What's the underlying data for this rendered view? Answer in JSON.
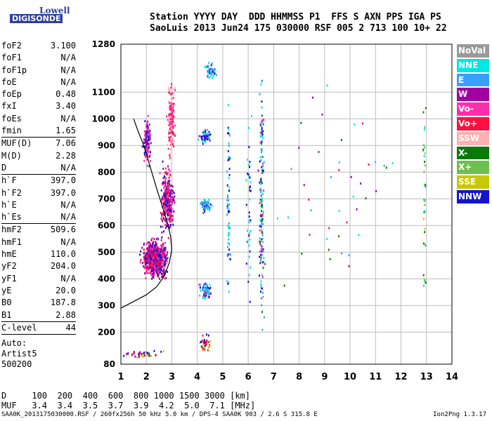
{
  "logo": {
    "line1": "Lowell",
    "line2": "DIGISONDE"
  },
  "header": {
    "line1": "Station YYYY DAY  DDD HHMMSS P1  FFS S AXN PPS IGA PS",
    "line2": "SaoLuis 2013 Jun24 175 030000 RSF 005 2 713 100 10+ 22"
  },
  "params": [
    {
      "label": "foF2",
      "value": "3.100"
    },
    {
      "label": "foF1",
      "value": "N/A"
    },
    {
      "label": "foF1p",
      "value": "N/A"
    },
    {
      "label": "foE",
      "value": "N/A"
    },
    {
      "label": "foEp",
      "value": "0.48"
    },
    {
      "label": "fxI",
      "value": "3.40"
    },
    {
      "label": "foEs",
      "value": "N/A"
    },
    {
      "label": "fmin",
      "value": "1.65"
    },
    {
      "label": "MUF(D)",
      "value": "7.06"
    },
    {
      "label": "M(D)",
      "value": "2.28"
    },
    {
      "label": "D",
      "value": "N/A"
    },
    {
      "label": "h`F",
      "value": "397.0"
    },
    {
      "label": "h`F2",
      "value": "397.0"
    },
    {
      "label": "h`E",
      "value": "N/A"
    },
    {
      "label": "h`Es",
      "value": "N/A"
    },
    {
      "label": "hmF2",
      "value": "509.6"
    },
    {
      "label": "hmF1",
      "value": "N/A"
    },
    {
      "label": "hmE",
      "value": "110.0"
    },
    {
      "label": "yF2",
      "value": "204.0"
    },
    {
      "label": "yF1",
      "value": "N/A"
    },
    {
      "label": "yE",
      "value": "20.0"
    },
    {
      "label": "B0",
      "value": "187.8"
    },
    {
      "label": "B1",
      "value": "2.88"
    },
    {
      "label": "C-level",
      "value": "44"
    }
  ],
  "auto": {
    "line1": "Auto:",
    "line2": "Artist5",
    "line3": "500200"
  },
  "scales": {
    "line1": "D     100  200  400  600  800 1000 1500 3000 [km]",
    "line2": "MUF   3.4  3.4  3.5  3.7  3.9  4.2  5.0  7.1 [MHz]"
  },
  "footer": "SAA0K_2013175030000.RSF / 260fx256h 50 kHz 5.0 km / DPS-4 SAA0K 903 / 2.6 S 315.8 E",
  "version": "Ion2Png 1.3.17",
  "legend": [
    {
      "label": "NoVal",
      "color": "#9a9a9a"
    },
    {
      "label": "NNE",
      "color": "#00e5e5"
    },
    {
      "label": "E",
      "color": "#3aa0ff"
    },
    {
      "label": "W",
      "color": "#a000a0"
    },
    {
      "label": "Vo-",
      "color": "#ff2faa"
    },
    {
      "label": "Vo+",
      "color": "#ff1040"
    },
    {
      "label": "SSW",
      "color": "#ffb0b0"
    },
    {
      "label": "X-",
      "color": "#0a7a0a"
    },
    {
      "label": "X+",
      "color": "#6fbf4f"
    },
    {
      "label": "SSE",
      "color": "#c8c800"
    },
    {
      "label": "NNW",
      "color": "#1414d0"
    }
  ],
  "chart_data": {
    "type": "scatter",
    "xlim": [
      1,
      14
    ],
    "ylim": [
      80,
      1280
    ],
    "x_ticks": [
      1,
      2,
      3,
      4,
      5,
      6,
      7,
      8,
      9,
      10,
      11,
      12,
      13,
      14
    ],
    "y_ticks": [
      80,
      200,
      300,
      400,
      500,
      600,
      700,
      800,
      900,
      1000,
      1100,
      1280
    ],
    "profile_curve": [
      [
        1.0,
        290
      ],
      [
        1.5,
        315
      ],
      [
        2.0,
        340
      ],
      [
        2.4,
        370
      ],
      [
        2.7,
        410
      ],
      [
        2.9,
        460
      ],
      [
        3.0,
        510
      ],
      [
        2.95,
        560
      ],
      [
        2.8,
        620
      ],
      [
        2.6,
        680
      ],
      [
        2.4,
        740
      ],
      [
        2.15,
        820
      ],
      [
        1.9,
        900
      ],
      [
        1.65,
        960
      ],
      [
        1.5,
        1000
      ]
    ],
    "clusters": [
      {
        "xc": 2.3,
        "yc": 480,
        "dx": 0.65,
        "dy": 90,
        "n": 700,
        "colors": [
          "#ff1040",
          "#ff2faa",
          "#a000a0",
          "#1414d0"
        ]
      },
      {
        "xc": 2.8,
        "yc": 700,
        "dx": 0.35,
        "dy": 160,
        "n": 300,
        "colors": [
          "#ff2faa",
          "#a000a0",
          "#ff1040",
          "#1414d0"
        ]
      },
      {
        "xc": 2.95,
        "yc": 1000,
        "dx": 0.2,
        "dy": 180,
        "n": 160,
        "colors": [
          "#ffb0b0",
          "#ff2faa",
          "#ff1040"
        ]
      },
      {
        "xc": 2.0,
        "yc": 920,
        "dx": 0.2,
        "dy": 130,
        "n": 120,
        "colors": [
          "#a000a0",
          "#ff2faa",
          "#1414d0"
        ]
      },
      {
        "xc": 4.3,
        "yc": 360,
        "dx": 0.3,
        "dy": 40,
        "n": 70,
        "colors": [
          "#1414d0",
          "#00e5e5",
          "#3aa0ff",
          "#ff2faa"
        ]
      },
      {
        "xc": 4.3,
        "yc": 680,
        "dx": 0.3,
        "dy": 40,
        "n": 60,
        "colors": [
          "#1414d0",
          "#00e5e5",
          "#3aa0ff"
        ]
      },
      {
        "xc": 4.3,
        "yc": 940,
        "dx": 0.3,
        "dy": 40,
        "n": 50,
        "colors": [
          "#1414d0",
          "#00e5e5",
          "#a000a0"
        ]
      },
      {
        "xc": 4.5,
        "yc": 1180,
        "dx": 0.3,
        "dy": 40,
        "n": 45,
        "colors": [
          "#1414d0",
          "#00e5e5",
          "#3aa0ff"
        ]
      },
      {
        "xc": 4.3,
        "yc": 160,
        "dx": 0.3,
        "dy": 40,
        "n": 40,
        "colors": [
          "#1414d0",
          "#ff1040",
          "#c8c800"
        ]
      },
      {
        "xc": 5.2,
        "yc": 700,
        "dx": 0.1,
        "dy": 560,
        "n": 60,
        "colors": [
          "#1414d0",
          "#00e5e5",
          "#3aa0ff"
        ]
      },
      {
        "xc": 6.5,
        "yc": 700,
        "dx": 0.12,
        "dy": 580,
        "n": 160,
        "colors": [
          "#1414d0",
          "#00e5e5",
          "#3aa0ff",
          "#0a7a0a",
          "#ff2faa"
        ]
      },
      {
        "xc": 6.0,
        "yc": 700,
        "dx": 0.15,
        "dy": 560,
        "n": 40,
        "colors": [
          "#1414d0",
          "#00e5e5"
        ]
      },
      {
        "xc": 12.9,
        "yc": 700,
        "dx": 0.1,
        "dy": 560,
        "n": 35,
        "colors": [
          "#c8c800",
          "#6fbf4f",
          "#0a7a0a",
          "#00e5e5"
        ]
      },
      {
        "xc": 1.8,
        "yc": 120,
        "dx": 1.2,
        "dy": 15,
        "n": 45,
        "colors": [
          "#1414d0",
          "#a000a0",
          "#c8c800"
        ]
      },
      {
        "xc": 9.5,
        "yc": 700,
        "dx": 3.5,
        "dy": 560,
        "n": 45,
        "colors": [
          "#ff1040",
          "#0a7a0a",
          "#00e5e5",
          "#a000a0",
          "#3aa0ff"
        ]
      }
    ]
  }
}
